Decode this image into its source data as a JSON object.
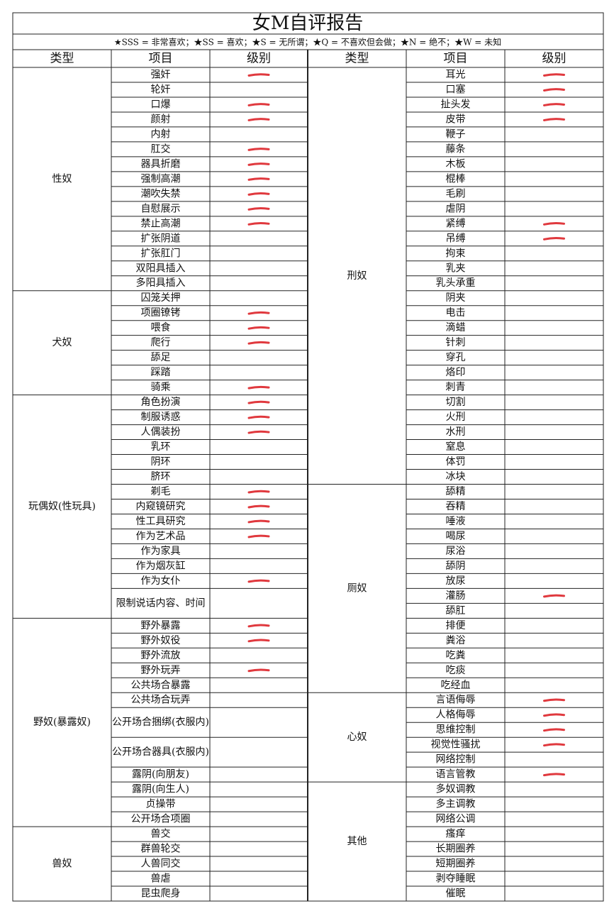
{
  "title": "女M自评报告",
  "legend": "★SSS = 非常喜欢；★SS = 喜欢；★S = 无所谓；★Q = 不喜欢但会做；★N = 绝不；★W = 未知",
  "headers": [
    "类型",
    "项目",
    "级别",
    "类型",
    "项目",
    "级别"
  ],
  "left": [
    {
      "type": "性奴",
      "items": [
        "强奸",
        "轮奸",
        "口爆",
        "颜射",
        "内射",
        "肛交",
        "器具折磨",
        "强制高潮",
        "潮吹失禁",
        "自慰展示",
        "禁止高潮",
        "扩张阴道",
        "扩张肛门",
        "双阳具插入",
        "多阳具插入"
      ]
    },
    {
      "type": "犬奴",
      "items": [
        "囚笼关押",
        "项圈镣铐",
        "喂食",
        "爬行",
        "舔足",
        "踩踏",
        "骑乘"
      ]
    },
    {
      "type": "玩偶奴(性玩具)",
      "items": [
        "角色扮演",
        "制服诱惑",
        "人偶装扮",
        "乳环",
        "阴环",
        "脐环",
        "剃毛",
        "内窥镜研究",
        "性工具研究",
        "作为艺术品",
        "作为家具",
        "作为烟灰缸",
        "作为女仆",
        "限制说话内容、时间"
      ]
    },
    {
      "type": "野奴(暴露奴)",
      "items": [
        "野外暴露",
        "野外奴役",
        "野外流放",
        "野外玩弄",
        "公共场合暴露",
        "公共场合玩弄",
        "公开场合捆绑(衣服内)",
        "公开场合器具(衣服内)",
        "露阴(向朋友)",
        "露阴(向生人)",
        "贞操带",
        "公开场合项圈"
      ]
    },
    {
      "type": "兽奴",
      "items": [
        "兽交",
        "群兽轮交",
        "人兽同交",
        "兽虐",
        "昆虫爬身"
      ]
    }
  ],
  "right": [
    {
      "type": "刑奴",
      "items": [
        "耳光",
        "口塞",
        "扯头发",
        "皮带",
        "鞭子",
        "藤条",
        "木板",
        "棍棒",
        "毛刷",
        "虐阴",
        "紧缚",
        "吊缚",
        "拘束",
        "乳夹",
        "乳头承重",
        "阴夹",
        "电击",
        "滴蜡",
        "针刺",
        "穿孔",
        "烙印",
        "刺青",
        "切割",
        "火刑",
        "水刑",
        "窒息",
        "体罚",
        "冰块"
      ]
    },
    {
      "type": "厕奴",
      "items": [
        "舔精",
        "吞精",
        "唾液",
        "喝尿",
        "尿浴",
        "舔阴",
        "放尿",
        "灌肠",
        "舔肛",
        "排便",
        "粪浴",
        "吃粪",
        "吃痰",
        "吃经血"
      ]
    },
    {
      "type": "心奴",
      "items": [
        "言语侮辱",
        "人格侮辱",
        "思维控制",
        "视觉性骚扰",
        "网络控制",
        "语言管教"
      ]
    },
    {
      "type": "其他",
      "items": [
        "多奴调教",
        "多主调教",
        "网络公调",
        "瘙痒",
        "长期圈养",
        "短期圈养",
        "剥夺睡眠",
        "催眠"
      ]
    }
  ]
}
